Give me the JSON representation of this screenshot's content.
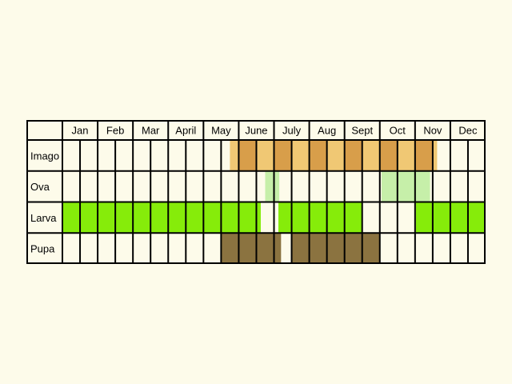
{
  "colors": {
    "background": "#fdfbea",
    "cell": "#fdfbea",
    "grid": "#000000",
    "imago_light": "#f0c874",
    "imago_dark": "#d89e4a",
    "ova": "#c6efa9",
    "larva": "#86ec0a",
    "pupa": "#8b7340"
  },
  "months": [
    "Jan",
    "Feb",
    "Mar",
    "April",
    "May",
    "June",
    "July",
    "Aug",
    "Sept",
    "Oct",
    "Nov",
    "Dec"
  ],
  "stages": [
    {
      "label": "Imago",
      "fill": "imago",
      "weeks": [
        {
          "w": 9,
          "s": 0.5,
          "e": 1
        },
        {
          "w": 10
        },
        {
          "w": 11
        },
        {
          "w": 12
        },
        {
          "w": 13
        },
        {
          "w": 14
        },
        {
          "w": 15
        },
        {
          "w": 16
        },
        {
          "w": 17
        },
        {
          "w": 18
        },
        {
          "w": 19
        },
        {
          "w": 20
        },
        {
          "w": 21,
          "s": 0,
          "e": 0.25
        }
      ]
    },
    {
      "label": "Ova",
      "fill": "ova",
      "weeks": [
        {
          "w": 11,
          "s": 0.5,
          "e": 1
        },
        {
          "w": 12,
          "s": 0,
          "e": 0.3
        },
        {
          "w": 18,
          "s": 0.1,
          "e": 1
        },
        {
          "w": 19
        },
        {
          "w": 20,
          "s": 0,
          "e": 0.85
        }
      ]
    },
    {
      "label": "Larva",
      "fill": "larva",
      "weeks": [
        {
          "w": 0
        },
        {
          "w": 1
        },
        {
          "w": 2
        },
        {
          "w": 3
        },
        {
          "w": 4
        },
        {
          "w": 5
        },
        {
          "w": 6
        },
        {
          "w": 7
        },
        {
          "w": 8
        },
        {
          "w": 9
        },
        {
          "w": 10
        },
        {
          "w": 11,
          "s": 0,
          "e": 0.25
        },
        {
          "w": 12,
          "s": 0.25,
          "e": 1
        },
        {
          "w": 13
        },
        {
          "w": 14
        },
        {
          "w": 15
        },
        {
          "w": 16
        },
        {
          "w": 20,
          "s": 0.05,
          "e": 1
        },
        {
          "w": 21
        },
        {
          "w": 22
        },
        {
          "w": 23
        },
        {
          "w": 24
        },
        {
          "w": 25
        }
      ]
    },
    {
      "label": "Pupa",
      "fill": "pupa",
      "weeks": [
        {
          "w": 9
        },
        {
          "w": 10
        },
        {
          "w": 11
        },
        {
          "w": 12,
          "s": 0,
          "e": 0.4
        },
        {
          "w": 13
        },
        {
          "w": 14
        },
        {
          "w": 15
        },
        {
          "w": 16
        },
        {
          "w": 17
        }
      ]
    }
  ]
}
